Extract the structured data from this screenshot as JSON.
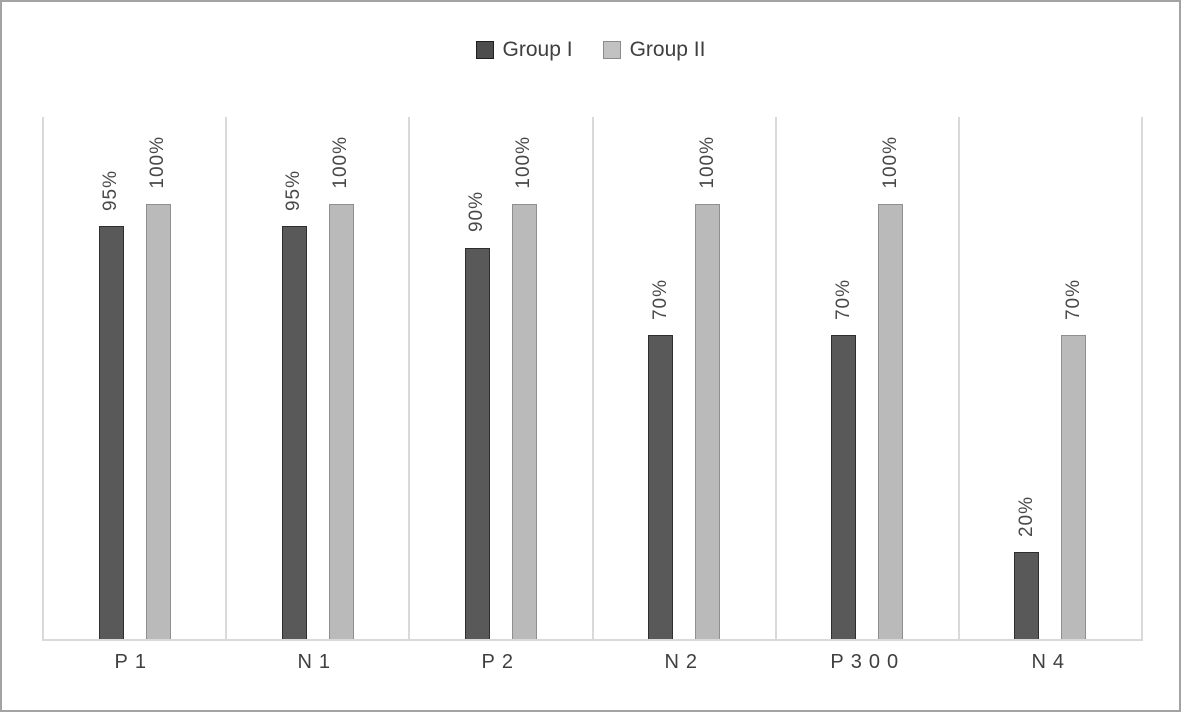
{
  "colors": {
    "group1_fill": "#595959",
    "group1_border": "#2e2e2e",
    "group2_fill": "#bababa",
    "group2_border": "#8f8f8f",
    "gridline": "#d9d9d9",
    "label_text": "#3f3f3f",
    "frame_border": "#a3a3a3"
  },
  "chart_data": {
    "type": "bar",
    "categories": [
      "P1",
      "N1",
      "P2",
      "N2",
      "P300",
      "N4"
    ],
    "series": [
      {
        "name": "Group I",
        "values": [
          95,
          95,
          90,
          70,
          70,
          20
        ],
        "labels": [
          "95%",
          "95%",
          "90%",
          "70%",
          "70%",
          "20%"
        ],
        "color": "#595959"
      },
      {
        "name": "Group II",
        "values": [
          100,
          100,
          100,
          100,
          100,
          70
        ],
        "labels": [
          "100%",
          "100%",
          "100%",
          "100%",
          "100%",
          "70%"
        ],
        "color": "#bababa"
      }
    ],
    "title": "",
    "xlabel": "",
    "ylabel": "",
    "ylim": [
      0,
      120
    ],
    "y_axis_visible": false,
    "grid": "vertical category separators only",
    "legend_position": "top-center",
    "data_labels": "outside end, rotated 90 degrees"
  }
}
